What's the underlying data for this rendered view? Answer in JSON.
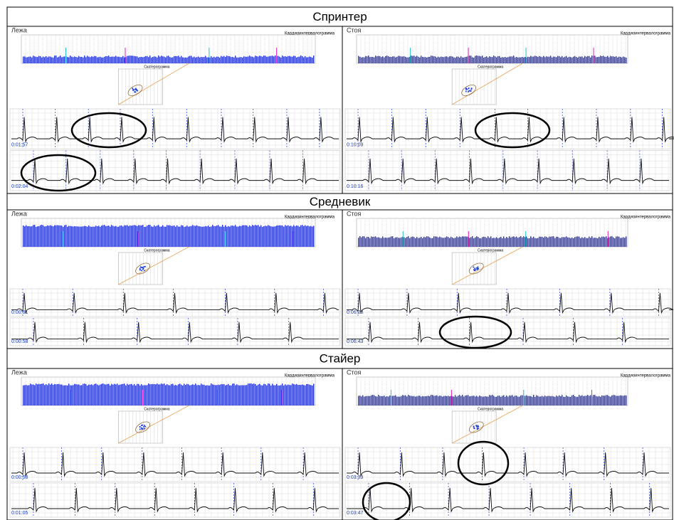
{
  "sections": [
    {
      "title": "Спринтер",
      "panels": [
        {
          "position": "Лежа",
          "chart_label": "Кардиоинтервалограмма",
          "scatter_label": "Скатерограмма",
          "strips": [
            "0:01:57",
            "0:02:04"
          ]
        },
        {
          "position": "Стоя",
          "chart_label": "Кардиоинтервалограмма",
          "scatter_label": "Скатерограмма",
          "strips": [
            "0:10:09",
            "0:10:16"
          ]
        }
      ]
    },
    {
      "title": "Средневик",
      "panels": [
        {
          "position": "Лежа",
          "chart_label": "Кардиоинтервалограмма",
          "scatter_label": "Скатерограмма",
          "strips": [
            "0:00:51",
            "0:00:58"
          ]
        },
        {
          "position": "Стоя",
          "chart_label": "Кардиоинтервалограмма",
          "scatter_label": "Скатерограмма",
          "strips": [
            "0:06:28",
            "0:06:43"
          ]
        }
      ]
    },
    {
      "title": "Стайер",
      "panels": [
        {
          "position": "Лежа",
          "chart_label": "Кардиоинтервалограмма",
          "scatter_label": "Скатерограмма",
          "strips": [
            "0:00:58",
            "0:01:05"
          ]
        },
        {
          "position": "Стоя",
          "chart_label": "Кардиоинтервалограмма",
          "scatter_label": "Скатерограмма",
          "strips": [
            "0:03:39",
            "0:03:47"
          ]
        }
      ]
    }
  ]
}
